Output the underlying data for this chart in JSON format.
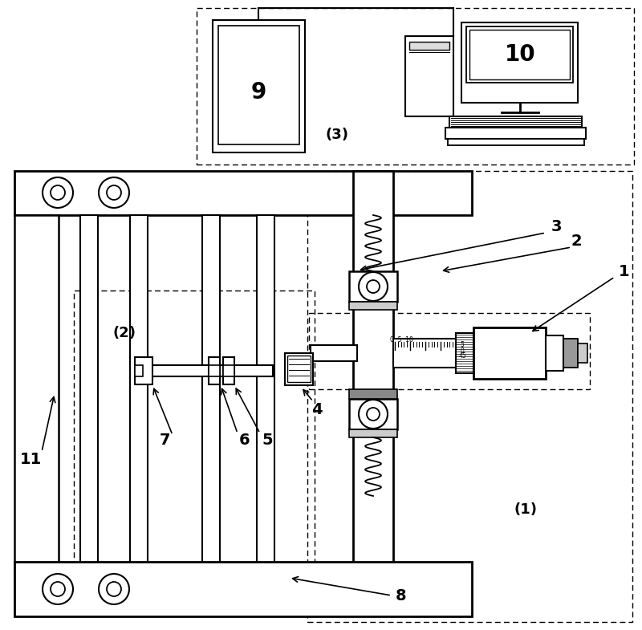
{
  "bg_color": "#ffffff",
  "line_color": "#000000",
  "label_color": "#000000",
  "fig_width": 8.0,
  "fig_height": 7.85,
  "dpi": 100
}
